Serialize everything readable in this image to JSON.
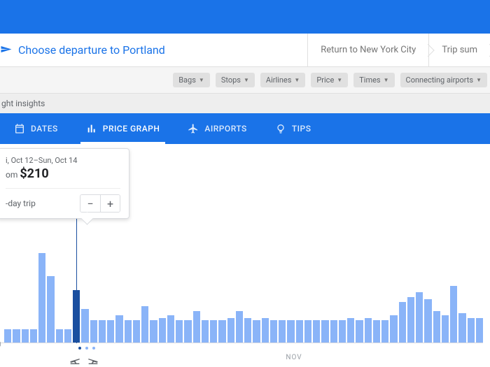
{
  "colors": {
    "primary": "#1a73e8",
    "bar": "#8ab4f8",
    "bar_selected": "#1a4fa0",
    "text_muted": "#5f6368",
    "chip_bg": "#e0e0e0",
    "border": "#dadce0"
  },
  "breadcrumb": {
    "main": "Choose departure to Portland",
    "step2": "Return to New York City",
    "step3": "Trip sum"
  },
  "filters": {
    "items": [
      "Bags",
      "Stops",
      "Airlines",
      "Price",
      "Times",
      "Connecting airports"
    ]
  },
  "insights_label": "ght insights",
  "tabs": {
    "items": [
      {
        "label": "DATES",
        "icon": "calendar"
      },
      {
        "label": "PRICE GRAPH",
        "icon": "bars"
      },
      {
        "label": "AIRPORTS",
        "icon": "plane"
      },
      {
        "label": "TIPS",
        "icon": "bulb"
      }
    ],
    "active_index": 1
  },
  "tooltip": {
    "date_range": "i, Oct 12–Sun, Oct 14",
    "from_label": "om ",
    "price": "$210",
    "trip_label": "-day trip",
    "minus": "−",
    "plus": "+"
  },
  "chart": {
    "zero_label": "0",
    "month_label": "NOV",
    "selected_index": 8,
    "bar_heights_pct": [
      12,
      12,
      12,
      12,
      78,
      58,
      12,
      12,
      46,
      30,
      20,
      20,
      20,
      24,
      20,
      20,
      32,
      20,
      22,
      24,
      20,
      20,
      28,
      20,
      20,
      20,
      22,
      28,
      22,
      20,
      22,
      20,
      20,
      20,
      20,
      20,
      20,
      20,
      20,
      20,
      22,
      20,
      22,
      20,
      20,
      24,
      36,
      40,
      44,
      38,
      28,
      24,
      50,
      26,
      22,
      22
    ]
  }
}
